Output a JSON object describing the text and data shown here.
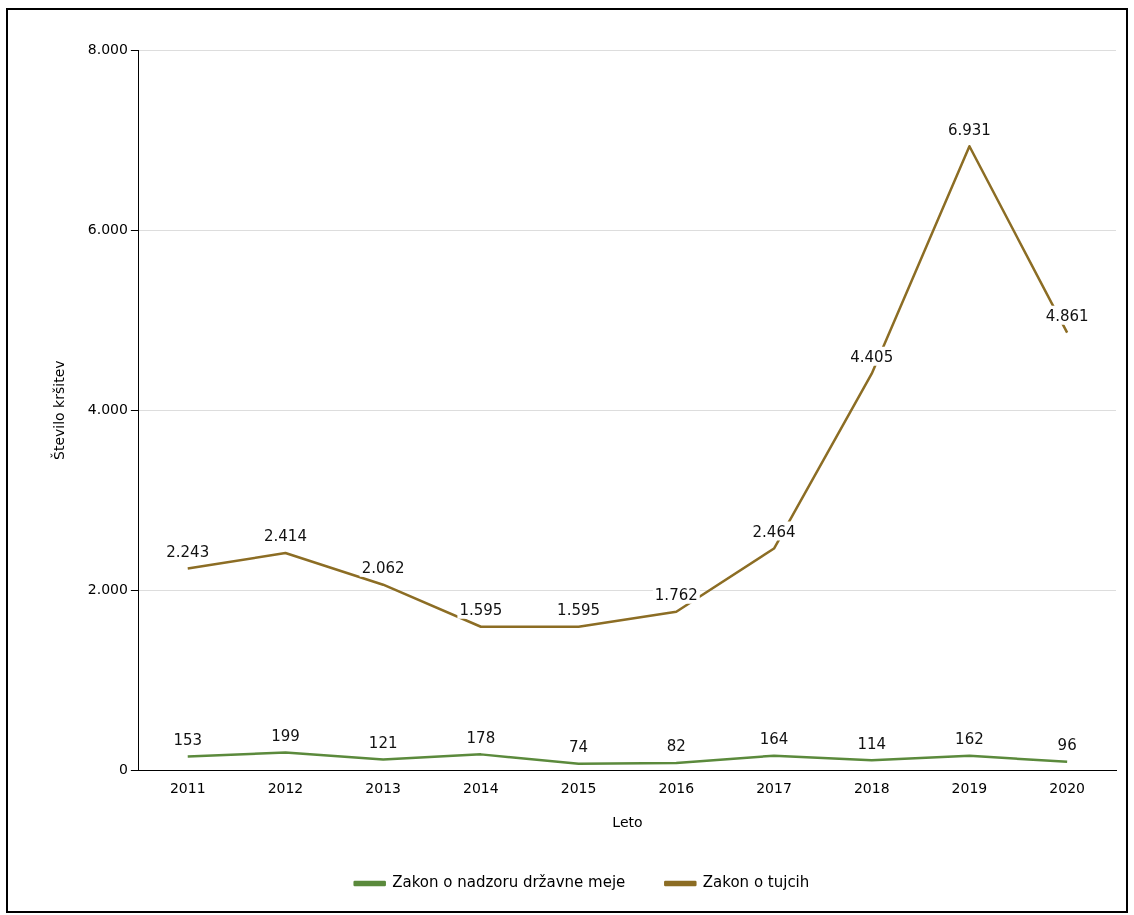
{
  "chart_data": {
    "type": "line",
    "xlabel": "Leto",
    "ylabel": "Število kršitev",
    "categories": [
      "2011",
      "2012",
      "2013",
      "2014",
      "2015",
      "2016",
      "2017",
      "2018",
      "2019",
      "2020"
    ],
    "series": [
      {
        "name": "Zakon o nadzoru državne meje",
        "color": "#5b8a3c",
        "values": [
          153,
          199,
          121,
          178,
          74,
          82,
          164,
          114,
          162,
          96
        ],
        "value_labels": [
          "153",
          "199",
          "121",
          "178",
          "74",
          "82",
          "164",
          "114",
          "162",
          "96"
        ]
      },
      {
        "name": "Zakon o tujcih",
        "color": "#8c6d24",
        "values": [
          2243,
          2414,
          2062,
          1595,
          1595,
          1762,
          2464,
          4405,
          6931,
          4861
        ],
        "value_labels": [
          "2.243",
          "2.414",
          "2.062",
          "1.595",
          "1.595",
          "1.762",
          "2.464",
          "4.405",
          "6.931",
          "4.861"
        ]
      }
    ],
    "ylim": [
      0,
      8000
    ],
    "yticks": [
      {
        "value": 0,
        "label": "0"
      },
      {
        "value": 2000,
        "label": "2.000"
      },
      {
        "value": 4000,
        "label": "4.000"
      },
      {
        "value": 6000,
        "label": "6.000"
      },
      {
        "value": 8000,
        "label": "8.000"
      }
    ],
    "grid": "y",
    "legend": "bottom",
    "marker": "none",
    "line_style": "solid"
  }
}
